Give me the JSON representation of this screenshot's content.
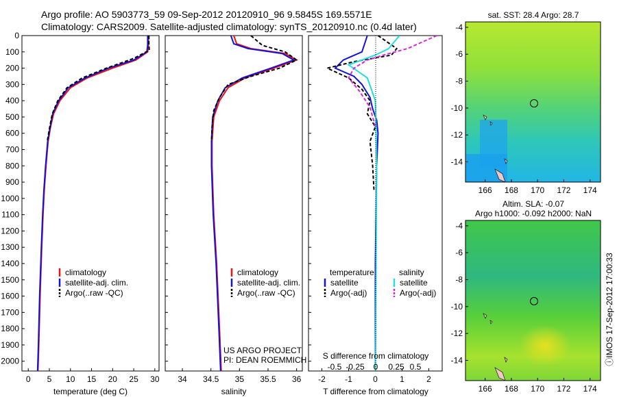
{
  "titles": {
    "line1": "Argo profile: AO 5903773_59 09-Sep-2012 20120910_96 9.5845S 169.5571E",
    "line2": "Climatology: CARS2009. Satellite-adjusted climatology: synTS_20120910.nc (0.4d later)"
  },
  "depth_axis": {
    "range": [
      0,
      2060
    ],
    "ticks": [
      0,
      100,
      200,
      300,
      400,
      500,
      600,
      700,
      800,
      900,
      1000,
      1100,
      1200,
      1300,
      1400,
      1500,
      1600,
      1700,
      1800,
      1900,
      2000
    ]
  },
  "colors": {
    "climatology": "#ee1111",
    "satellite": "#1111dd",
    "argo": "#000000",
    "sal_satellite": "#22dddd",
    "sal_argo": "#dd22dd"
  },
  "temperature_panel": {
    "xlabel": "temperature (deg C)",
    "xrange": [
      -1.5,
      31
    ],
    "xticks": [
      0,
      5,
      10,
      15,
      20,
      25,
      30
    ],
    "legend": [
      "climatology",
      "satellite-adj. clim.",
      "Argo(..raw -QC)"
    ]
  },
  "salinity_panel": {
    "xlabel": "salinity",
    "xrange": [
      33.7,
      36.1
    ],
    "xticks": [
      34,
      34.5,
      35,
      35.5,
      36
    ],
    "legend": [
      "climatology",
      "satellite-adj. clim.",
      "Argo(..raw -QC)"
    ],
    "credit_line1": "US ARGO PROJECT",
    "credit_line2": "PI: DEAN ROEMMICH"
  },
  "difference_panel": {
    "xlabel": "T difference from climatology",
    "xrange": [
      -2.5,
      2.5
    ],
    "xticks": [
      -2,
      -1,
      0,
      1,
      2
    ],
    "s_label": "S difference from climatology",
    "s_ticks": [
      "-0.5",
      "-0.25",
      "0",
      "0.25",
      "0.5"
    ],
    "legend_temp_header": "temperature",
    "legend_sal_header": "salinity",
    "legend_satellite": "satellite",
    "legend_argo": "Argo(-adj)"
  },
  "map_top": {
    "title": "sat. SST: 28.4  Argo: 28.7",
    "lat_ticks": [
      "-4",
      "-6",
      "-8",
      "-10",
      "-12",
      "-14"
    ],
    "lon_ticks": [
      "166",
      "168",
      "170",
      "172",
      "174"
    ]
  },
  "map_bottom": {
    "title_line1": "Altim. SLA: -0.07",
    "title_line2": "Argo h1000: -0.092 h2000: NaN",
    "lat_ticks": [
      "-4",
      "-6",
      "-8",
      "-10",
      "-12",
      "-14"
    ],
    "lon_ticks": [
      "166",
      "168",
      "170",
      "172",
      "174"
    ]
  },
  "footer_stamp": "ⓘIMOS 17-Sep-2012 17:00:33",
  "chart_data": [
    {
      "type": "line",
      "panel": "temperature",
      "xlabel": "temperature (deg C)",
      "ylabel": "",
      "ylim": [
        0,
        2060
      ],
      "series": [
        {
          "name": "climatology",
          "x": [
            28.5,
            28.5,
            28.3,
            25.5,
            20.0,
            14.0,
            10.0,
            7.5,
            6.0,
            5.3,
            4.7,
            4.2,
            3.8,
            3.5,
            3.2,
            2.8,
            2.5,
            2.3
          ],
          "y": [
            0,
            60,
            100,
            150,
            200,
            260,
            320,
            400,
            480,
            560,
            650,
            800,
            950,
            1100,
            1300,
            1600,
            1900,
            2060
          ]
        },
        {
          "name": "satellite-adj. clim.",
          "x": [
            28.3,
            28.3,
            28.1,
            25.0,
            19.0,
            13.5,
            9.5,
            7.2,
            5.8,
            5.2,
            4.6,
            4.1,
            3.7,
            3.4,
            3.1,
            2.7,
            2.4,
            2.2
          ],
          "y": [
            0,
            60,
            100,
            150,
            200,
            260,
            320,
            400,
            480,
            560,
            650,
            800,
            950,
            1100,
            1300,
            1600,
            1900,
            2060
          ]
        },
        {
          "name": "Argo(..raw -QC)",
          "x": [
            28.6,
            28.6,
            28.7,
            25.0,
            18.5,
            12.8,
            9.2,
            7.0,
            5.7,
            5.1,
            4.5
          ],
          "y": [
            0,
            50,
            90,
            140,
            200,
            260,
            320,
            400,
            480,
            560,
            650
          ]
        }
      ]
    },
    {
      "type": "line",
      "panel": "salinity",
      "xlabel": "salinity",
      "ylabel": "",
      "ylim": [
        0,
        2060
      ],
      "series": [
        {
          "name": "climatology",
          "x": [
            34.9,
            34.95,
            35.2,
            35.8,
            36.0,
            35.6,
            35.1,
            34.8,
            34.65,
            34.55,
            34.52,
            34.52,
            34.55,
            34.6,
            34.65,
            34.68
          ],
          "y": [
            0,
            50,
            80,
            110,
            150,
            200,
            260,
            320,
            400,
            500,
            650,
            800,
            1100,
            1400,
            1800,
            2060
          ]
        },
        {
          "name": "satellite-adj. clim.",
          "x": [
            34.85,
            34.9,
            35.15,
            35.75,
            35.95,
            35.55,
            35.05,
            34.75,
            34.62,
            34.53,
            34.51,
            34.51,
            34.54,
            34.59,
            34.64,
            34.67
          ],
          "y": [
            0,
            50,
            80,
            110,
            150,
            200,
            260,
            320,
            400,
            500,
            650,
            800,
            1100,
            1400,
            1800,
            2060
          ]
        },
        {
          "name": "Argo(..raw -QC)",
          "x": [
            35.2,
            35.4,
            35.8,
            36.0,
            35.7,
            35.2,
            34.8,
            34.65,
            34.55,
            34.52,
            34.51
          ],
          "y": [
            0,
            60,
            100,
            150,
            200,
            250,
            300,
            380,
            460,
            560,
            650
          ]
        }
      ]
    },
    {
      "type": "line",
      "panel": "difference",
      "xlabel": "T difference from climatology",
      "ylabel": "",
      "ylim": [
        0,
        2060
      ],
      "series": [
        {
          "name": "temperature satellite",
          "x": [
            -0.3,
            -0.5,
            -1.2,
            -1.5,
            -0.8,
            -0.5,
            -0.2,
            -0.1,
            0.05,
            0.1,
            0.05,
            0.0,
            0.0
          ],
          "y": [
            0,
            100,
            150,
            200,
            250,
            300,
            380,
            450,
            520,
            600,
            800,
            1400,
            2060
          ]
        },
        {
          "name": "temperature Argo(-adj)",
          "x": [
            0.1,
            0.8,
            0.6,
            -0.8,
            -1.8,
            -1.0,
            -0.5,
            -0.2,
            -0.3,
            0.0,
            -0.2,
            -0.1,
            -0.05
          ],
          "y": [
            0,
            80,
            120,
            160,
            200,
            260,
            330,
            400,
            480,
            560,
            650,
            800,
            950
          ]
        },
        {
          "name": "salinity satellite",
          "x": [
            0.9,
            0.5,
            0.0,
            -1.0,
            -0.3,
            0.0,
            0.05,
            0.0
          ],
          "y": [
            0,
            80,
            120,
            180,
            260,
            400,
            800,
            2060
          ]
        },
        {
          "name": "salinity Argo(-adj)",
          "x": [
            2.3,
            1.2,
            0.3,
            -0.3,
            -0.8,
            -1.0,
            -0.6,
            -0.2,
            0.0
          ],
          "y": [
            0,
            80,
            120,
            150,
            200,
            260,
            340,
            440,
            560
          ]
        }
      ]
    },
    {
      "type": "heatmap",
      "panel": "map_top",
      "title": "sat. SST: 28.4  Argo: 28.7",
      "xlim": [
        164.5,
        174.8
      ],
      "ylim": [
        -15.5,
        -3.6
      ]
    },
    {
      "type": "heatmap",
      "panel": "map_bottom",
      "title": "Altim. SLA: -0.07",
      "xlim": [
        164.5,
        174.8
      ],
      "ylim": [
        -15.5,
        -3.6
      ]
    }
  ]
}
